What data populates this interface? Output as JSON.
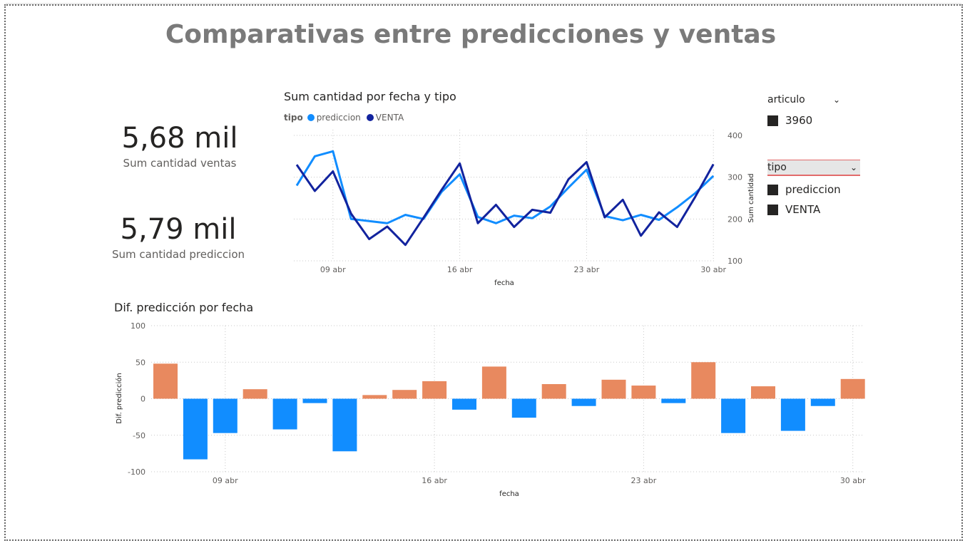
{
  "title": "Comparativas entre predicciones y ventas",
  "kpis": [
    {
      "value": "5,68 mil",
      "label": "Sum cantidad ventas"
    },
    {
      "value": "5,79 mil",
      "label": "Sum cantidad prediccion"
    }
  ],
  "slicers": {
    "articulo": {
      "title": "articulo",
      "items": [
        "3960"
      ]
    },
    "tipo": {
      "title": "tipo",
      "items": [
        "prediccion",
        "VENTA"
      ]
    }
  },
  "chart_data": [
    {
      "type": "line",
      "title": "Sum cantidad por fecha y tipo",
      "legend_title": "tipo",
      "legend_position": "top-left",
      "xlabel": "fecha",
      "ylabel": "Sum cantidad",
      "ylim": [
        100,
        400
      ],
      "yticks": [
        100,
        200,
        300,
        400
      ],
      "x_ticks": [
        "09 abr",
        "16 abr",
        "23 abr",
        "30 abr"
      ],
      "x": [
        "07 abr",
        "08 abr",
        "09 abr",
        "10 abr",
        "11 abr",
        "12 abr",
        "13 abr",
        "14 abr",
        "15 abr",
        "16 abr",
        "17 abr",
        "18 abr",
        "19 abr",
        "20 abr",
        "21 abr",
        "22 abr",
        "23 abr",
        "24 abr",
        "25 abr",
        "26 abr",
        "27 abr",
        "28 abr",
        "29 abr",
        "30 abr"
      ],
      "series": [
        {
          "name": "prediccion",
          "color": "#118dff",
          "values": [
            280,
            350,
            362,
            200,
            195,
            190,
            210,
            200,
            265,
            307,
            205,
            190,
            208,
            202,
            230,
            275,
            318,
            207,
            197,
            210,
            198,
            228,
            262,
            303
          ]
        },
        {
          "name": "VENTA",
          "color": "#12239e",
          "values": [
            330,
            267,
            314,
            213,
            152,
            182,
            138,
            203,
            270,
            333,
            190,
            234,
            181,
            222,
            215,
            295,
            336,
            204,
            246,
            160,
            216,
            181,
            253,
            331
          ]
        }
      ],
      "grid": true
    },
    {
      "type": "bar",
      "title": "Dif. predicción por fecha",
      "xlabel": "fecha",
      "ylabel": "Dif. predicción",
      "ylim": [
        -100,
        100
      ],
      "yticks": [
        -100,
        -50,
        0,
        50,
        100
      ],
      "x_ticks": [
        "09 abr",
        "16 abr",
        "23 abr",
        "30 abr"
      ],
      "positive_color": "#e8895f",
      "negative_color": "#118dff",
      "x": [
        "07 abr",
        "08 abr",
        "09 abr",
        "10 abr",
        "11 abr",
        "12 abr",
        "13 abr",
        "14 abr",
        "15 abr",
        "16 abr",
        "17 abr",
        "18 abr",
        "19 abr",
        "20 abr",
        "21 abr",
        "22 abr",
        "23 abr",
        "24 abr",
        "25 abr",
        "26 abr",
        "27 abr",
        "28 abr",
        "29 abr",
        "30 abr"
      ],
      "values": [
        48,
        -83,
        -47,
        13,
        -42,
        -6,
        -72,
        5,
        12,
        24,
        -15,
        44,
        -26,
        20,
        -10,
        26,
        18,
        -6,
        50,
        -47,
        17,
        -44,
        -10,
        27
      ],
      "grid": true
    }
  ]
}
